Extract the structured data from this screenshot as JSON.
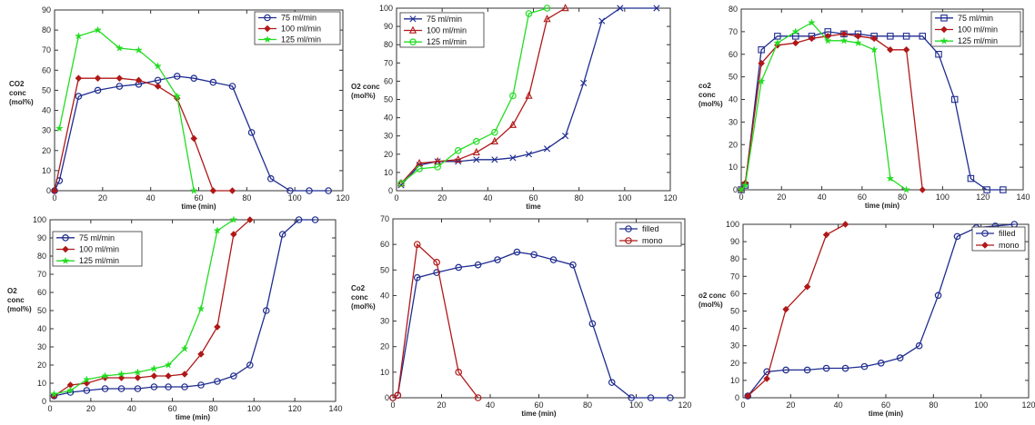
{
  "chart_data": [
    {
      "type": "line",
      "title": "",
      "xlabel": "time  (min)",
      "ylabel": [
        "CO2",
        "conc",
        "(mol%)"
      ],
      "xlim": [
        0,
        120
      ],
      "ylim": [
        0,
        90
      ],
      "xticks": [
        0,
        20,
        40,
        60,
        80,
        100,
        120
      ],
      "yticks": [
        0,
        10,
        20,
        30,
        40,
        50,
        60,
        70,
        80,
        90
      ],
      "legend_placement": "top-right",
      "series": [
        {
          "name": "75 ml/min",
          "color": "#1f2c8f",
          "marker": "circle",
          "x": [
            0,
            2,
            10,
            18,
            27,
            35,
            43,
            51,
            58,
            66,
            74,
            82,
            90,
            98,
            106,
            114
          ],
          "y": [
            0,
            5,
            47,
            50,
            52,
            53,
            55,
            57,
            56,
            54,
            52,
            29,
            6,
            0,
            0,
            0
          ]
        },
        {
          "name": "100 ml/min",
          "color": "#b01818",
          "marker": "diamond",
          "x": [
            0,
            10,
            18,
            27,
            35,
            43,
            51,
            58,
            66,
            74
          ],
          "y": [
            0,
            56,
            56,
            56,
            55,
            52,
            46,
            26,
            0,
            0
          ]
        },
        {
          "name": "125 ml/min",
          "color": "#22dd22",
          "marker": "star",
          "x": [
            2,
            10,
            18,
            27,
            35,
            43,
            51,
            58
          ],
          "y": [
            31,
            77,
            80,
            71,
            70,
            62,
            47,
            0
          ]
        }
      ]
    },
    {
      "type": "line",
      "title": "",
      "xlabel": "time",
      "ylabel": [
        "O2 conc",
        "(mol%)"
      ],
      "xlim": [
        0,
        120
      ],
      "ylim": [
        0,
        100
      ],
      "xticks": [
        0,
        20,
        40,
        60,
        80,
        100,
        120
      ],
      "yticks": [
        0,
        10,
        20,
        30,
        40,
        50,
        60,
        70,
        80,
        90,
        100
      ],
      "legend_placement": "top-left",
      "series": [
        {
          "name": "75 ml/min",
          "color": "#1f2c8f",
          "marker": "x",
          "x": [
            2,
            10,
            18,
            27,
            35,
            43,
            51,
            58,
            66,
            74,
            82,
            90,
            98,
            114
          ],
          "y": [
            3,
            14,
            16,
            16,
            17,
            17,
            18,
            20,
            23,
            30,
            59,
            93,
            100,
            100
          ]
        },
        {
          "name": "100 ml/min",
          "color": "#b01818",
          "marker": "triangle",
          "x": [
            2,
            10,
            18,
            27,
            35,
            43,
            51,
            58,
            66,
            74
          ],
          "y": [
            4,
            15,
            16,
            17,
            21,
            27,
            36,
            52,
            94,
            100
          ]
        },
        {
          "name": "125 ml/min",
          "color": "#22dd22",
          "marker": "circle",
          "x": [
            2,
            10,
            18,
            27,
            35,
            43,
            51,
            58,
            66
          ],
          "y": [
            4,
            12,
            13,
            22,
            27,
            32,
            52,
            97,
            100
          ]
        }
      ]
    },
    {
      "type": "line",
      "title": "",
      "xlabel": "time  (min)",
      "ylabel": [
        "co2",
        "conc",
        "(mol%)"
      ],
      "xlim": [
        0,
        140
      ],
      "ylim": [
        0,
        80
      ],
      "xticks": [
        0,
        20,
        40,
        60,
        80,
        100,
        120,
        140
      ],
      "yticks": [
        0,
        10,
        20,
        30,
        40,
        50,
        60,
        70,
        80
      ],
      "legend_placement": "top-right",
      "series": [
        {
          "name": "75 ml/min",
          "color": "#1f2c8f",
          "marker": "square",
          "x": [
            0,
            2,
            10,
            18,
            27,
            35,
            43,
            51,
            58,
            66,
            74,
            82,
            90,
            98,
            106,
            114,
            122,
            130
          ],
          "y": [
            0,
            2,
            62,
            68,
            68,
            68,
            70,
            69,
            69,
            68,
            68,
            68,
            68,
            60,
            40,
            5,
            0,
            0
          ]
        },
        {
          "name": "100 ml/min",
          "color": "#b01818",
          "marker": "diamond",
          "x": [
            0,
            2,
            10,
            18,
            27,
            35,
            43,
            51,
            58,
            66,
            74,
            82,
            90
          ],
          "y": [
            0,
            3,
            56,
            64,
            65,
            67,
            68,
            69,
            68,
            67,
            62,
            62,
            0
          ]
        },
        {
          "name": "125 ml/min",
          "color": "#22dd22",
          "marker": "star",
          "x": [
            0,
            2,
            10,
            18,
            27,
            35,
            43,
            51,
            58,
            66,
            74,
            82
          ],
          "y": [
            0,
            2,
            48,
            65,
            70,
            74,
            66,
            66,
            65,
            62,
            5,
            0
          ]
        }
      ]
    },
    {
      "type": "line",
      "title": "",
      "xlabel": "time  (min)",
      "ylabel": [
        "O2",
        "conc",
        "(mol%)"
      ],
      "xlim": [
        0,
        140
      ],
      "ylim": [
        0,
        100
      ],
      "xticks": [
        0,
        20,
        40,
        60,
        80,
        100,
        120,
        140
      ],
      "yticks": [
        0,
        10,
        20,
        30,
        40,
        50,
        60,
        70,
        80,
        90,
        100
      ],
      "legend_placement": "top-left",
      "series": [
        {
          "name": "75 ml/min",
          "color": "#1f2c8f",
          "marker": "circle",
          "x": [
            2,
            10,
            18,
            27,
            35,
            43,
            51,
            58,
            66,
            74,
            82,
            90,
            98,
            106,
            114,
            122,
            130
          ],
          "y": [
            3,
            5,
            6,
            7,
            7,
            7,
            8,
            8,
            8,
            9,
            11,
            14,
            20,
            50,
            92,
            100,
            100
          ]
        },
        {
          "name": "100 ml/min",
          "color": "#b01818",
          "marker": "diamond",
          "x": [
            2,
            10,
            18,
            27,
            35,
            43,
            51,
            58,
            66,
            74,
            82,
            90,
            98
          ],
          "y": [
            3,
            9,
            10,
            13,
            13,
            13,
            14,
            14,
            15,
            26,
            41,
            92,
            100
          ]
        },
        {
          "name": "125 ml/min",
          "color": "#22dd22",
          "marker": "star",
          "x": [
            2,
            10,
            18,
            27,
            35,
            43,
            51,
            58,
            66,
            74,
            82,
            90
          ],
          "y": [
            4,
            6,
            12,
            14,
            15,
            16,
            18,
            20,
            29,
            51,
            94,
            100
          ]
        }
      ]
    },
    {
      "type": "line",
      "title": "",
      "xlabel": "time  (min)",
      "ylabel": [
        "Co2",
        "conc",
        "(mol%)"
      ],
      "xlim": [
        0,
        120
      ],
      "ylim": [
        0,
        70
      ],
      "xticks": [
        0,
        20,
        40,
        60,
        80,
        100,
        120
      ],
      "yticks": [
        0,
        10,
        20,
        30,
        40,
        50,
        60,
        70
      ],
      "legend_placement": "top-right",
      "series": [
        {
          "name": "filled",
          "color": "#1f2c8f",
          "marker": "circle",
          "x": [
            0,
            2,
            10,
            18,
            27,
            35,
            43,
            51,
            58,
            66,
            74,
            82,
            90,
            98,
            106,
            114
          ],
          "y": [
            0,
            1,
            47,
            49,
            51,
            52,
            54,
            57,
            56,
            54,
            52,
            29,
            6,
            0,
            0,
            0
          ]
        },
        {
          "name": "mono",
          "color": "#b01818",
          "marker": "circle",
          "x": [
            0,
            2,
            10,
            18,
            27,
            35
          ],
          "y": [
            0,
            1,
            60,
            53,
            10,
            0
          ]
        }
      ]
    },
    {
      "type": "line",
      "title": "",
      "xlabel": "time  (min)",
      "ylabel": [
        "o2 conc",
        "(mol%)"
      ],
      "xlim": [
        0,
        120
      ],
      "ylim": [
        0,
        100
      ],
      "xticks": [
        0,
        20,
        40,
        60,
        80,
        100,
        120
      ],
      "yticks": [
        0,
        10,
        20,
        30,
        40,
        50,
        60,
        70,
        80,
        90,
        100
      ],
      "legend_placement": "top-right",
      "series": [
        {
          "name": "filled",
          "color": "#1f2c8f",
          "marker": "circle",
          "x": [
            2,
            10,
            18,
            27,
            35,
            43,
            51,
            58,
            66,
            74,
            82,
            90,
            98,
            106,
            114
          ],
          "y": [
            1,
            15,
            16,
            16,
            17,
            17,
            18,
            20,
            23,
            30,
            59,
            93,
            98,
            99,
            100
          ]
        },
        {
          "name": "mono",
          "color": "#b01818",
          "marker": "diamond",
          "x": [
            2,
            10,
            18,
            27,
            35,
            43
          ],
          "y": [
            1,
            11,
            51,
            64,
            94,
            100
          ]
        }
      ]
    }
  ]
}
